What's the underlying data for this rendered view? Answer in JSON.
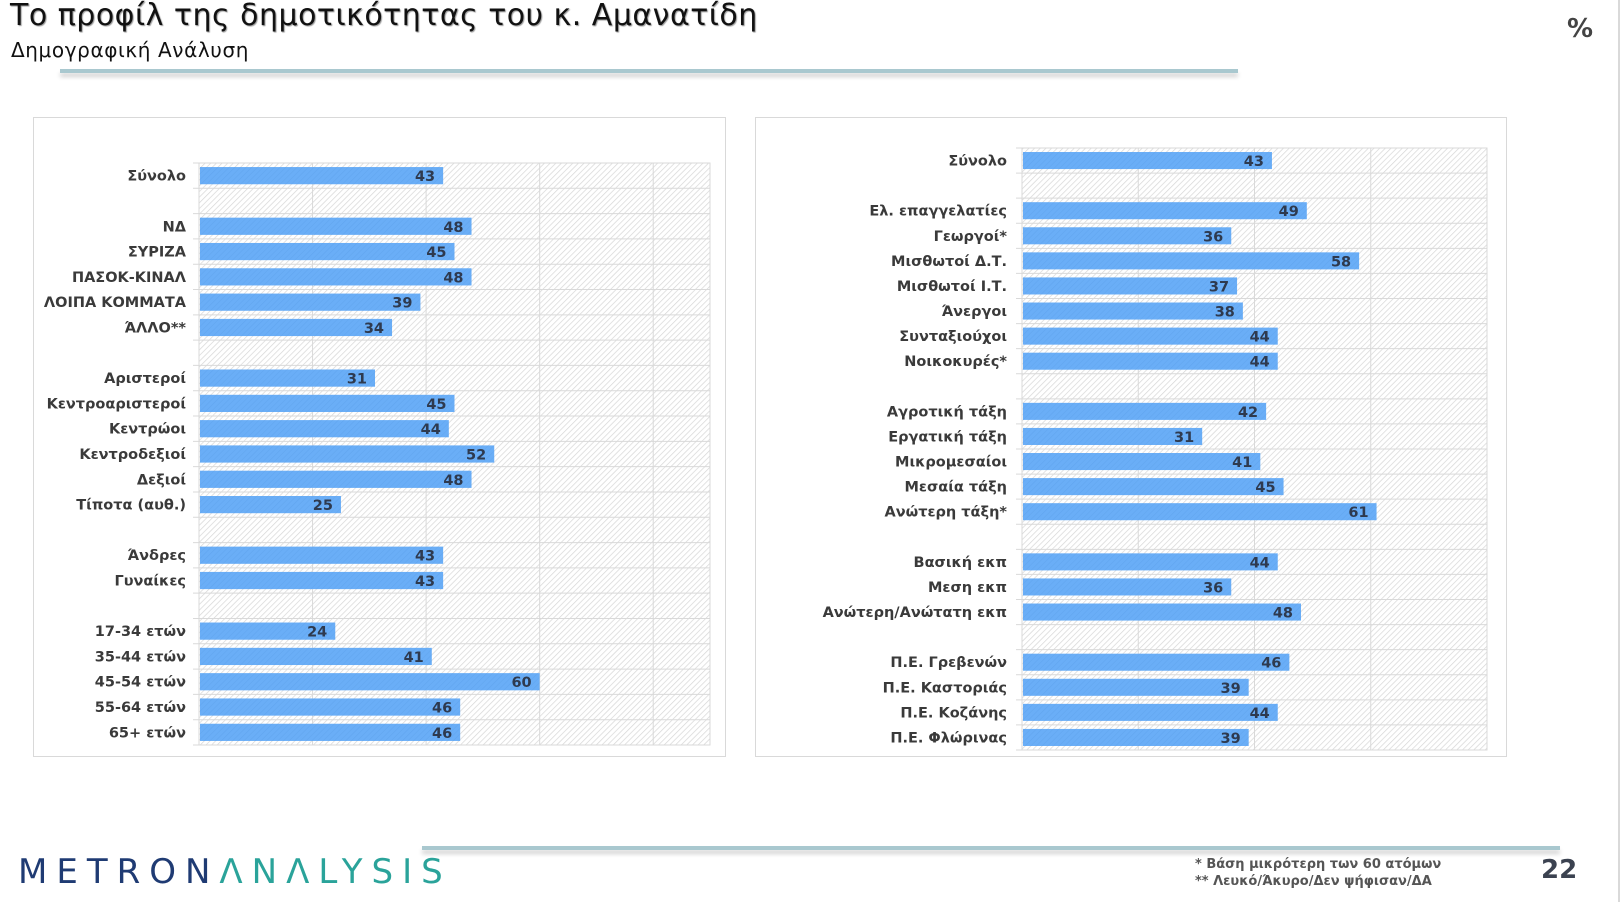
{
  "header": {
    "title": "Το προφίλ της δημοτικότητας του κ. Αμανατίδη",
    "subtitle": "Δημογραφική Ανάλυση",
    "unit": "%"
  },
  "footer": {
    "logo_part1": "METRON",
    "logo_part2": "ΛNΛLYSIS",
    "note1": "*  Βάση μικρότερη των 60 ατόμων",
    "note2": "** Λευκό/Άκυρο/Δεν ψήφισαν/ΔΑ",
    "page_number": "22"
  },
  "colors": {
    "bar": "#6aaef7",
    "logo_dark": "#1f3b73",
    "logo_teal": "#2aa39a",
    "rule": "#a9c8cf"
  },
  "chart_data": [
    {
      "type": "bar",
      "orientation": "horizontal",
      "title": "",
      "xlim": [
        0,
        90
      ],
      "grid": true,
      "categories": [
        "Σύνολο",
        "",
        "ΝΔ",
        "ΣΥΡΙΖΑ",
        "ΠΑΣΟΚ-ΚΙΝΑΛ",
        "ΛΟΙΠΑ ΚΟΜΜΑΤΑ",
        "ΆΛΛΟ**",
        "",
        "Αριστεροί",
        "Κεντροαριστεροί",
        "Κεντρώοι",
        "Κεντροδεξιοί",
        "Δεξιοί",
        "Τίποτα (αυθ.)",
        "",
        "Άνδρες",
        "Γυναίκες",
        "",
        "17-34 ετών",
        "35-44 ετών",
        "45-54 ετών",
        "55-64 ετών",
        "65+ ετών"
      ],
      "values": [
        43,
        null,
        48,
        45,
        48,
        39,
        34,
        null,
        31,
        45,
        44,
        52,
        48,
        25,
        null,
        43,
        43,
        null,
        24,
        41,
        60,
        46,
        46
      ]
    },
    {
      "type": "bar",
      "orientation": "horizontal",
      "title": "",
      "xlim": [
        0,
        80
      ],
      "grid": true,
      "categories": [
        "Σύνολο",
        "",
        "Ελ. επαγγελατίες",
        "Γεωργοί*",
        "Μισθωτοί Δ.Τ.",
        "Μισθωτοί Ι.Τ.",
        "Άνεργοι",
        "Συνταξιούχοι",
        "Νοικοκυρές*",
        "",
        "Αγροτική τάξη",
        "Εργατική τάξη",
        "Μικρομεσαίοι",
        "Μεσαία τάξη",
        "Ανώτερη τάξη*",
        "",
        "Βασική εκπ",
        "Μεση εκπ",
        "Ανώτερη/Ανώτατη εκπ",
        "",
        "Π.Ε. Γρεβενών",
        "Π.Ε. Καστοριάς",
        "Π.Ε. Κοζάνης",
        "Π.Ε. Φλώρινας"
      ],
      "values": [
        43,
        null,
        49,
        36,
        58,
        37,
        38,
        44,
        44,
        null,
        42,
        31,
        41,
        45,
        61,
        null,
        44,
        36,
        48,
        null,
        46,
        39,
        44,
        39
      ]
    }
  ]
}
